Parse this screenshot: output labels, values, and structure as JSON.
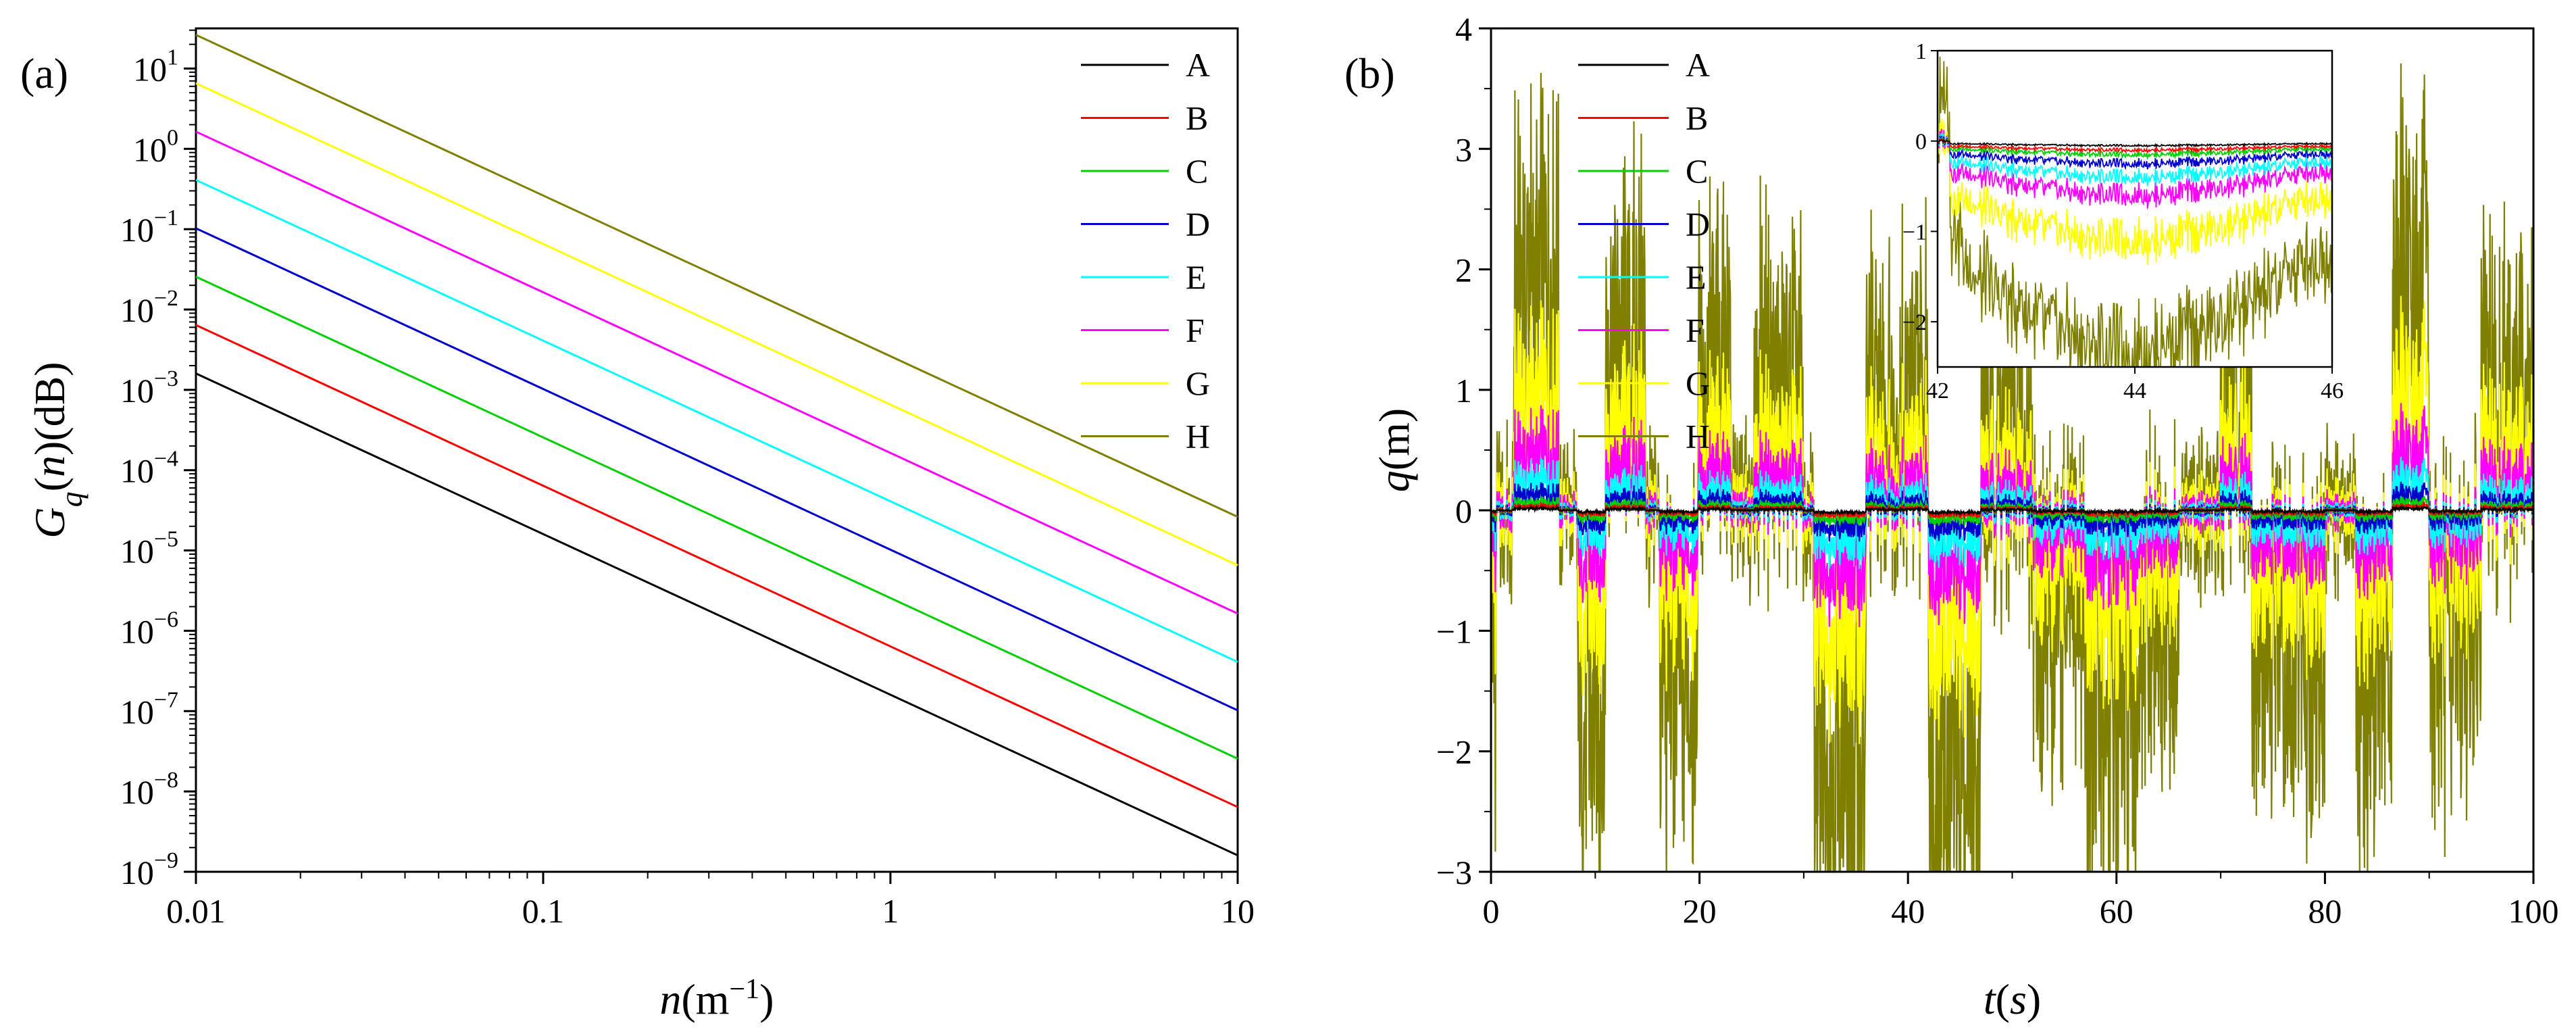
{
  "chart_data": [
    {
      "type": "line",
      "panel_label": "(a)",
      "title": "",
      "xscale": "log",
      "yscale": "log",
      "xlabel": {
        "main": "n",
        "unit_open": "(m",
        "unit_exp": "−1",
        "unit_close": ")"
      },
      "ylabel": {
        "main": "G",
        "sub": "q",
        "paren_open": "(",
        "arg": "n",
        "paren_close": ")(dB)"
      },
      "xlim": [
        0.01,
        10
      ],
      "ylim": [
        1e-09,
        31.6
      ],
      "x_ticks": [
        {
          "value": 0.01,
          "label": "0.01"
        },
        {
          "value": 0.1,
          "label": "0.1"
        },
        {
          "value": 1,
          "label": "1"
        },
        {
          "value": 10,
          "label": "10"
        }
      ],
      "y_ticks": [
        {
          "exp": 1,
          "base": "10",
          "power": "1"
        },
        {
          "exp": 0,
          "base": "10",
          "power": "0"
        },
        {
          "exp": -1,
          "base": "10",
          "power": "−1"
        },
        {
          "exp": -2,
          "base": "10",
          "power": "−2"
        },
        {
          "exp": -3,
          "base": "10",
          "power": "−3"
        },
        {
          "exp": -4,
          "base": "10",
          "power": "−4"
        },
        {
          "exp": -5,
          "base": "10",
          "power": "−5"
        },
        {
          "exp": -6,
          "base": "10",
          "power": "−6"
        },
        {
          "exp": -7,
          "base": "10",
          "power": "−7"
        },
        {
          "exp": -8,
          "base": "10",
          "power": "−8"
        },
        {
          "exp": -9,
          "base": "10",
          "power": "−9"
        }
      ],
      "legend_position": "top-right",
      "series": [
        {
          "name": "A",
          "color": "#000000",
          "x": [
            0.01,
            10
          ],
          "y": [
            0.0016,
            1.6e-09
          ]
        },
        {
          "name": "B",
          "color": "#ff0000",
          "x": [
            0.01,
            10
          ],
          "y": [
            0.0064,
            6.4e-09
          ]
        },
        {
          "name": "C",
          "color": "#00d000",
          "x": [
            0.01,
            10
          ],
          "y": [
            0.0256,
            2.56e-08
          ]
        },
        {
          "name": "D",
          "color": "#0000cc",
          "x": [
            0.01,
            10
          ],
          "y": [
            0.1024,
            1.024e-07
          ]
        },
        {
          "name": "E",
          "color": "#00ffff",
          "x": [
            0.01,
            10
          ],
          "y": [
            0.4096,
            4.096e-07
          ]
        },
        {
          "name": "F",
          "color": "#ff00ff",
          "x": [
            0.01,
            10
          ],
          "y": [
            1.6384,
            1.6384e-06
          ]
        },
        {
          "name": "G",
          "color": "#ffff00",
          "x": [
            0.01,
            10
          ],
          "y": [
            6.5536,
            6.5536e-06
          ]
        },
        {
          "name": "H",
          "color": "#808000",
          "x": [
            0.01,
            10
          ],
          "y": [
            26.2144,
            2.62144e-05
          ]
        }
      ]
    },
    {
      "type": "line",
      "panel_label": "(b)",
      "title": "",
      "xlabel": {
        "main": "t",
        "paren_open": "(",
        "arg": "s",
        "paren_close": ")"
      },
      "ylabel": {
        "main": "q",
        "unit": "(m)"
      },
      "xlim": [
        0,
        100
      ],
      "ylim": [
        -3,
        4
      ],
      "x_ticks": [
        0,
        20,
        40,
        60,
        80,
        100
      ],
      "y_ticks": [
        -3,
        -2,
        -1,
        0,
        1,
        2,
        3,
        4
      ],
      "legend_position": "top-left",
      "series": [
        {
          "name": "A",
          "color": "#000000",
          "amplitude": 0.02
        },
        {
          "name": "B",
          "color": "#ff0000",
          "amplitude": 0.04
        },
        {
          "name": "C",
          "color": "#00d000",
          "amplitude": 0.08
        },
        {
          "name": "D",
          "color": "#0000cc",
          "amplitude": 0.16
        },
        {
          "name": "E",
          "color": "#00ffff",
          "amplitude": 0.3
        },
        {
          "name": "F",
          "color": "#ff00ff",
          "amplitude": 0.6
        },
        {
          "name": "G",
          "color": "#ffff00",
          "amplitude": 1.2
        },
        {
          "name": "H",
          "color": "#808000",
          "amplitude": 2.5
        }
      ],
      "signal_segments": [
        {
          "x0": 0,
          "x1": 0.5,
          "mean": -0.45
        },
        {
          "x0": 0.5,
          "x1": 2.2,
          "mean": 0.0
        },
        {
          "x0": 2.2,
          "x1": 6.5,
          "mean": 0.75
        },
        {
          "x0": 6.5,
          "x1": 8.3,
          "mean": 0.0
        },
        {
          "x0": 8.3,
          "x1": 11,
          "mean": -0.7
        },
        {
          "x0": 11,
          "x1": 14.8,
          "mean": 0.55
        },
        {
          "x0": 14.8,
          "x1": 16.2,
          "mean": 0.0
        },
        {
          "x0": 16.2,
          "x1": 19.8,
          "mean": -0.55
        },
        {
          "x0": 19.8,
          "x1": 23,
          "mean": 0.45
        },
        {
          "x0": 23,
          "x1": 25.2,
          "mean": 0.0
        },
        {
          "x0": 25.2,
          "x1": 30,
          "mean": 0.35
        },
        {
          "x0": 30,
          "x1": 31,
          "mean": 0.0
        },
        {
          "x0": 31,
          "x1": 36,
          "mean": -0.85
        },
        {
          "x0": 36,
          "x1": 42,
          "mean": 0.35
        },
        {
          "x0": 42,
          "x1": 47,
          "mean": -0.85
        },
        {
          "x0": 47,
          "x1": 52,
          "mean": 0.2
        },
        {
          "x0": 52,
          "x1": 57,
          "mean": -0.35
        },
        {
          "x0": 57,
          "x1": 62,
          "mean": -0.7
        },
        {
          "x0": 62,
          "x1": 66,
          "mean": -0.4
        },
        {
          "x0": 66,
          "x1": 70,
          "mean": 0.0
        },
        {
          "x0": 70,
          "x1": 73,
          "mean": 0.45
        },
        {
          "x0": 73,
          "x1": 76,
          "mean": -0.45
        },
        {
          "x0": 76,
          "x1": 80,
          "mean": -0.5
        },
        {
          "x0": 80,
          "x1": 83,
          "mean": 0.0
        },
        {
          "x0": 83,
          "x1": 86.5,
          "mean": -0.55
        },
        {
          "x0": 86.5,
          "x1": 90,
          "mean": 0.75
        },
        {
          "x0": 90,
          "x1": 95,
          "mean": -0.4
        },
        {
          "x0": 95,
          "x1": 100,
          "mean": 0.35
        }
      ],
      "inset": {
        "xlim": [
          42,
          46
        ],
        "ylim": [
          -2.5,
          1
        ],
        "x_ticks": [
          42,
          44,
          46
        ],
        "y_ticks": [
          1,
          0,
          -1,
          -2
        ],
        "min_values": {
          "A": -0.05,
          "B": -0.1,
          "C": -0.15,
          "D": -0.25,
          "E": -0.4,
          "F": -0.6,
          "G": -1.1,
          "H": -2.3
        }
      }
    }
  ]
}
